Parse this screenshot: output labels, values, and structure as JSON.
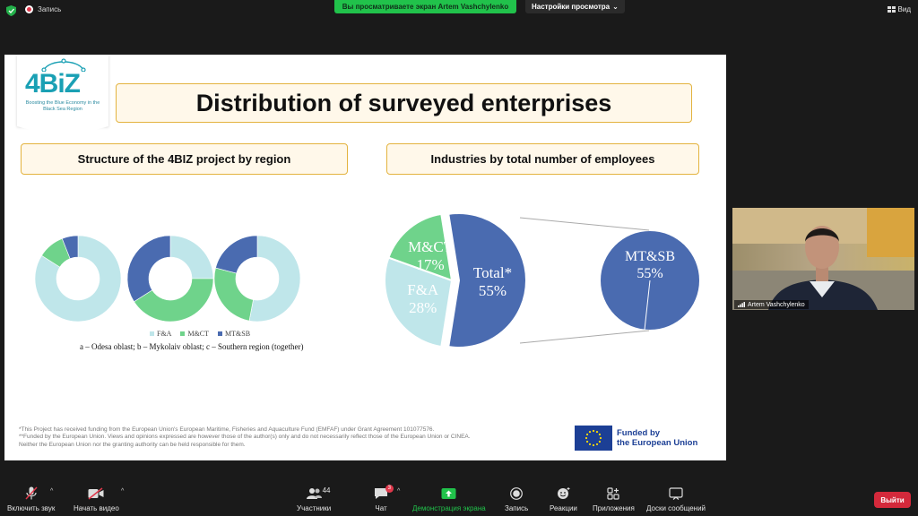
{
  "topbar": {
    "record_label": "Запись",
    "share_banner": "Вы просматриваете экран Artem Vashchylenko",
    "view_settings": "Настройки просмотра",
    "view_button": "Вид"
  },
  "slide": {
    "logo_text": "4BiZ",
    "logo_tagline": "Boosting the Blue Economy in the Black Sea Region",
    "title": "Distribution of surveyed enterprises",
    "left_heading": "Structure of the 4BIZ project by region",
    "right_heading": "Industries by total number of employees",
    "legend": [
      "F&A",
      "M&CT",
      "MT&SB"
    ],
    "caption": "a – Odesa oblast; b – Mykolaiv oblast; c – Southern region (together)",
    "disclaimer_1": "*This Project has received funding from the European Union's European Maritime, Fisheries and Aquaculture Fund (EMFAF) under Grant Agreement 101077576.",
    "disclaimer_2": "**Funded by the European Union. Views and opinions expressed are however those of the author(s) only and do not necessarily reflect those of the European Union or CINEA.",
    "disclaimer_3": "Neither the European Union nor the granting authority can be held responsible for them.",
    "eu_line1": "Funded by",
    "eu_line2": "the European Union"
  },
  "colors": {
    "fa": "#bfe6ea",
    "mct": "#6fd38b",
    "mtsb": "#4a6bb0",
    "accent_border": "#e3b33f"
  },
  "chart_data": [
    {
      "type": "pie",
      "subtype": "donut",
      "categories": [
        "F&A",
        "M&CT",
        "MT&SB"
      ],
      "values": [
        84,
        10,
        6
      ]
    },
    {
      "type": "pie",
      "subtype": "donut",
      "categories": [
        "F&A",
        "M&CT",
        "MT&SB"
      ],
      "values": [
        25,
        41,
        34
      ]
    },
    {
      "type": "pie",
      "subtype": "donut",
      "categories": [
        "F&A",
        "M&CT",
        "MT&SB"
      ],
      "values": [
        53,
        26,
        21
      ]
    },
    {
      "type": "pie",
      "categories": [
        "M&CT",
        "F&A",
        "Total*"
      ],
      "values": [
        17,
        28,
        55
      ],
      "labels": [
        "17%",
        "28%",
        "55%"
      ]
    },
    {
      "type": "pie",
      "categories": [
        "MT&SB"
      ],
      "values": [
        55
      ],
      "labels": [
        "55%"
      ]
    }
  ],
  "video": {
    "participant_name": "Artem Vashchylenko"
  },
  "toolbar": {
    "mute": "Включить звук",
    "video": "Начать видео",
    "participants": "Участники",
    "participants_count": "44",
    "chat": "Чат",
    "chat_badge": "3",
    "share": "Демонстрация экрана",
    "record": "Запись",
    "reactions": "Реакции",
    "apps": "Приложения",
    "whiteboards": "Доски сообщений",
    "leave": "Выйти"
  }
}
